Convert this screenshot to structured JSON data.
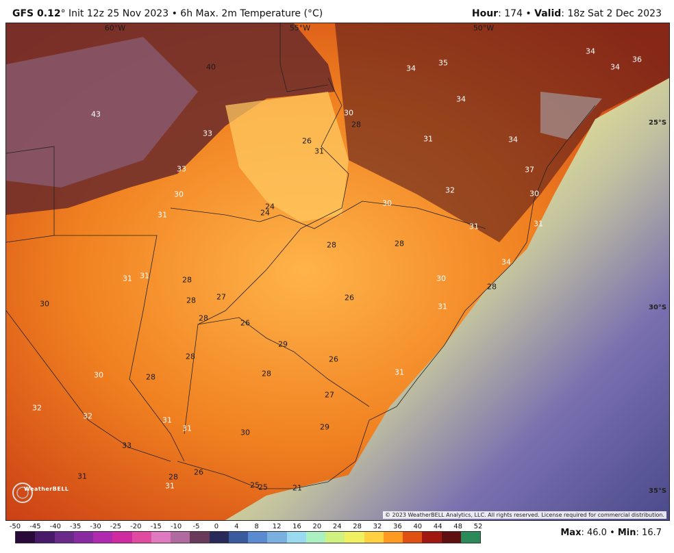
{
  "header": {
    "model": "GFS 0.12",
    "degree": "°",
    "init_text": " Init 12z 25 Nov 2023 • 6h Max. 2m Temperature (°C)",
    "hour_label": "Hour",
    "hour_value": ": 174 • ",
    "valid_label": "Valid",
    "valid_value": ": 18z Sat 2 Dec 2023"
  },
  "map": {
    "lon_labels": [
      "60°W",
      "55°W",
      "50°W"
    ],
    "lat_labels": [
      "25°S",
      "30°S",
      "35°S"
    ],
    "temperature_labels": [
      "40",
      "43",
      "33",
      "33",
      "30",
      "31",
      "30",
      "34",
      "35",
      "34",
      "36",
      "34",
      "34",
      "37",
      "28",
      "31",
      "24",
      "24",
      "30",
      "26",
      "31",
      "30",
      "31",
      "32",
      "31",
      "28",
      "28",
      "27",
      "28",
      "26",
      "26",
      "31",
      "31",
      "28",
      "30",
      "30",
      "28",
      "28",
      "28",
      "31",
      "29",
      "26",
      "28",
      "27",
      "30",
      "32",
      "32",
      "31",
      "31",
      "33",
      "31",
      "28",
      "29",
      "30",
      "31",
      "26",
      "25",
      "25",
      "21",
      "28",
      "31",
      "34",
      "34"
    ],
    "copyright": "© 2023 WeatherBELL Analytics, LLC. All rights reserved. License required for commercial distribution.",
    "logo_text": "WeatherBELL"
  },
  "colorbar": {
    "ticks": [
      "-50",
      "-45",
      "-40",
      "-35",
      "-30",
      "-25",
      "-20",
      "-15",
      "-10",
      "-5",
      "0",
      "4",
      "8",
      "12",
      "16",
      "20",
      "24",
      "28",
      "32",
      "36",
      "40",
      "44",
      "48",
      "52"
    ],
    "colors": [
      "#2a0a3a",
      "#4a1a6a",
      "#6a2a8a",
      "#8a2aa0",
      "#b02ab0",
      "#d02aa0",
      "#e04aa0",
      "#e07ac0",
      "#b06aa0",
      "#6a3a5a",
      "#2a2a5a",
      "#3a5aa0",
      "#5a8ad0",
      "#7ab0e0",
      "#9adaf0",
      "#aaf0c0",
      "#d0f080",
      "#f0f060",
      "#ffd040",
      "#ff9a20",
      "#e05010",
      "#a01810",
      "#601010",
      "#2a8a5a"
    ]
  },
  "stats": {
    "max_label": "Max",
    "max_value": ": 46.0 • ",
    "min_label": "Min",
    "min_value": ": 16.7"
  }
}
